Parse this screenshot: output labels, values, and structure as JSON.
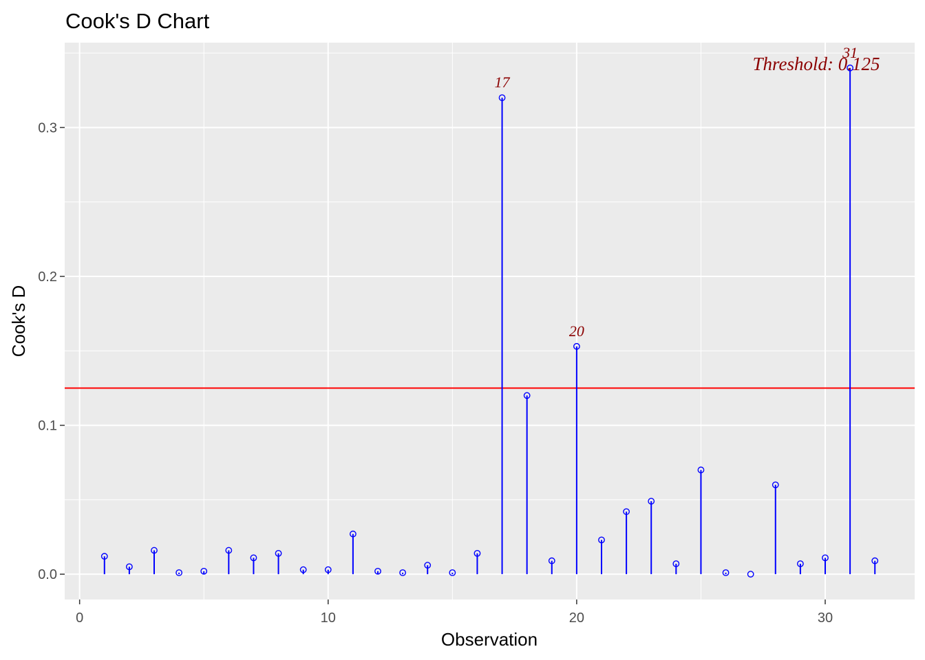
{
  "chart_data": {
    "type": "scatter",
    "title": "Cook's D Chart",
    "xlabel": "Observation",
    "ylabel": "Cook's D",
    "xlim": [
      -0.6,
      33.6
    ],
    "ylim": [
      -0.017,
      0.357
    ],
    "x_ticks": [
      0,
      10,
      20,
      30
    ],
    "x_tick_labels": [
      "0",
      "10",
      "20",
      "30"
    ],
    "y_ticks": [
      0.0,
      0.1,
      0.2,
      0.3
    ],
    "y_tick_labels": [
      "0.0",
      "0.1",
      "0.2",
      "0.3"
    ],
    "grid": true,
    "threshold": {
      "value": 0.125,
      "label": "Threshold: 0.125",
      "color": "#ff0000"
    },
    "point_color": "#0000ff",
    "label_color": "#8b0000",
    "panel_color": "#ebebeb",
    "x": [
      1,
      2,
      3,
      4,
      5,
      6,
      7,
      8,
      9,
      10,
      11,
      12,
      13,
      14,
      15,
      16,
      17,
      18,
      19,
      20,
      21,
      22,
      23,
      24,
      25,
      26,
      27,
      28,
      29,
      30,
      31,
      32
    ],
    "values": [
      0.012,
      0.005,
      0.016,
      0.001,
      0.002,
      0.016,
      0.011,
      0.014,
      0.003,
      0.003,
      0.027,
      0.002,
      0.001,
      0.006,
      0.001,
      0.014,
      0.32,
      0.12,
      0.009,
      0.153,
      0.023,
      0.042,
      0.049,
      0.007,
      0.07,
      0.001,
      0.0,
      0.06,
      0.007,
      0.011,
      0.34,
      0.009
    ],
    "point_labels": [
      {
        "x": 17,
        "label": "17"
      },
      {
        "x": 20,
        "label": "20"
      },
      {
        "x": 31,
        "label": "31"
      }
    ]
  }
}
